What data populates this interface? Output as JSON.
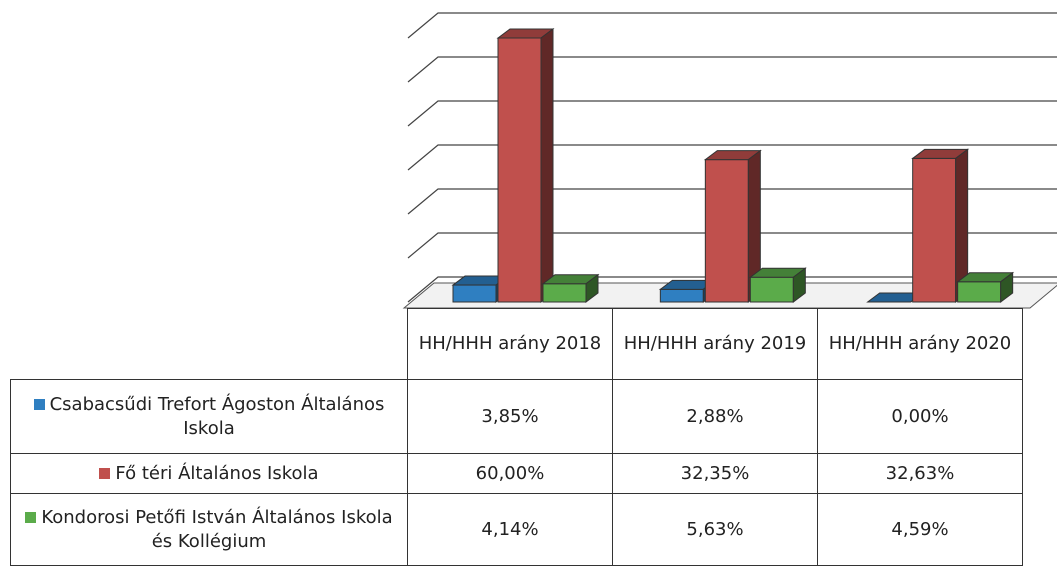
{
  "chart_data": {
    "type": "bar3d",
    "categories": [
      "HH/HHH arány 2018",
      "HH/HHH arány 2019",
      "HH/HHH arány 2020"
    ],
    "series": [
      {
        "name": "Csabacsűdi Trefort Ágoston Általános Iskola",
        "color": "#2f7fc1",
        "values": [
          3.85,
          2.88,
          0
        ],
        "value_labels": [
          "3,85%",
          "2,88%",
          "0,00%"
        ]
      },
      {
        "name": "Fő téri Általános Iskola",
        "color": "#c0504d",
        "values": [
          60,
          32.35,
          32.63
        ],
        "value_labels": [
          "60,00%",
          "32,35%",
          "32,63%"
        ]
      },
      {
        "name": "Kondorosi Petőfi István Általános Iskola és Kollégium",
        "color": "#5bab4a",
        "values": [
          4.14,
          5.63,
          4.59
        ],
        "value_labels": [
          "4,14%",
          "5,63%",
          "4,59%"
        ]
      }
    ],
    "ylim": [
      0,
      60
    ],
    "yticks": [
      0,
      10,
      20,
      30,
      40,
      50,
      60
    ],
    "grid": true
  }
}
